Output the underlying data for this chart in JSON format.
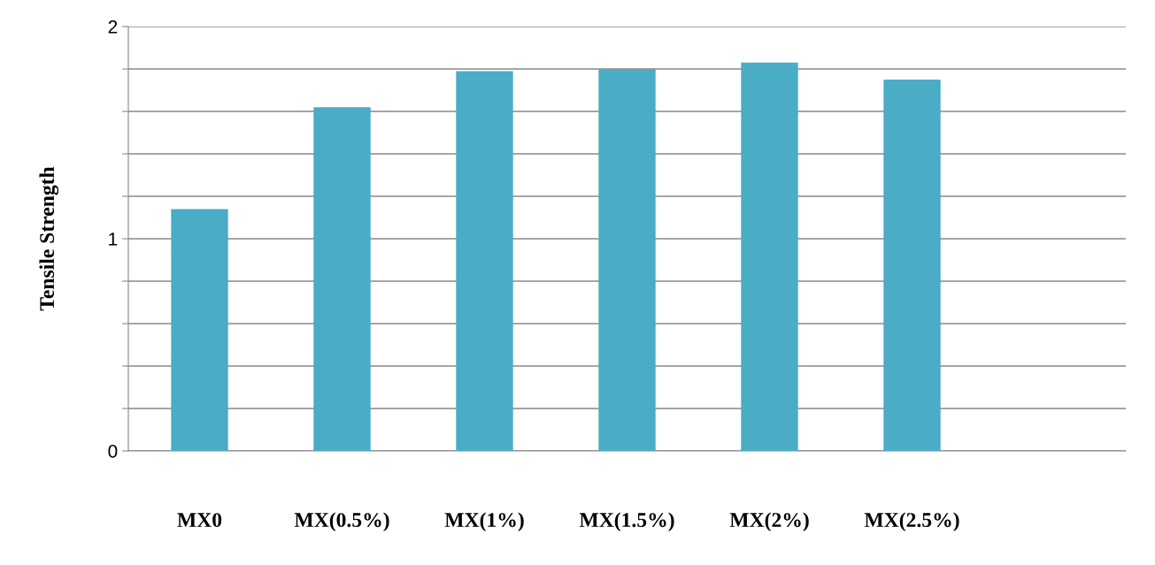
{
  "chart_data": {
    "type": "bar",
    "ylabel": "Tensile Strength",
    "categories": [
      "MX0",
      "MX(0.5%)",
      "MX(1%)",
      "MX(1.5%)",
      "MX(2%)",
      "MX(2.5%)",
      null
    ],
    "values": [
      1.14,
      1.62,
      1.79,
      1.8,
      1.83,
      1.75,
      null
    ],
    "color": "#4bacc6",
    "ylim": [
      0,
      2
    ],
    "yticks": [
      0,
      {
        "value": 0.2,
        "label": null
      },
      {
        "value": 0.4,
        "label": null
      },
      {
        "value": 0.6,
        "label": null
      },
      {
        "value": 0.8,
        "label": null
      },
      1,
      {
        "value": 1.2,
        "label": null
      },
      {
        "value": 1.4,
        "label": null
      },
      {
        "value": 1.6,
        "label": null
      },
      {
        "value": 1.8,
        "label": null
      },
      2
    ],
    "grid": "y"
  }
}
